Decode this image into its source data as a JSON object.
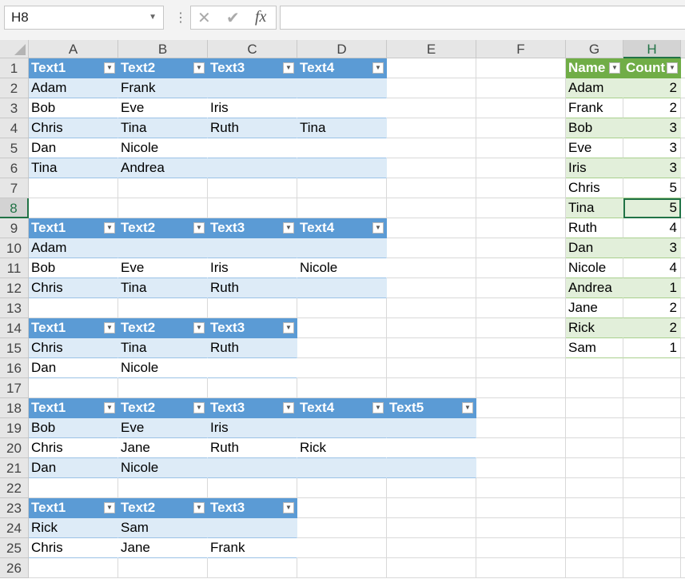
{
  "name_box": "H8",
  "formula_bar": {
    "cancel_icon": "x-icon",
    "enter_icon": "check-icon",
    "fx_label": "fx",
    "value": ""
  },
  "columns": [
    "A",
    "B",
    "C",
    "D",
    "E",
    "F",
    "G",
    "H"
  ],
  "row_count": 26,
  "selected_cell": {
    "column": "H",
    "row": 8
  },
  "colors": {
    "blue_header": "#5B9BD5",
    "blue_band": "#DDEBF7",
    "green_header": "#70AD47",
    "green_band": "#E2EFDA",
    "selection": "#217346"
  },
  "tables": [
    {
      "start_row": 1,
      "start_col": 0,
      "headers": [
        "Text1",
        "Text2",
        "Text3",
        "Text4"
      ],
      "rows": [
        [
          "Adam",
          "Frank",
          "",
          ""
        ],
        [
          "Bob",
          "Eve",
          "Iris",
          ""
        ],
        [
          "Chris",
          "Tina",
          "Ruth",
          "Tina"
        ],
        [
          "Dan",
          "Nicole",
          "",
          ""
        ],
        [
          "Tina",
          "Andrea",
          "",
          ""
        ]
      ]
    },
    {
      "start_row": 9,
      "start_col": 0,
      "headers": [
        "Text1",
        "Text2",
        "Text3",
        "Text4"
      ],
      "rows": [
        [
          "Adam",
          "",
          "",
          ""
        ],
        [
          "Bob",
          "Eve",
          "Iris",
          "Nicole"
        ],
        [
          "Chris",
          "Tina",
          "Ruth",
          ""
        ]
      ]
    },
    {
      "start_row": 14,
      "start_col": 0,
      "headers": [
        "Text1",
        "Text2",
        "Text3"
      ],
      "rows": [
        [
          "Chris",
          "Tina",
          "Ruth"
        ],
        [
          "Dan",
          "Nicole",
          ""
        ]
      ]
    },
    {
      "start_row": 18,
      "start_col": 0,
      "headers": [
        "Text1",
        "Text2",
        "Text3",
        "Text4",
        "Text5"
      ],
      "rows": [
        [
          "Bob",
          "Eve",
          "Iris",
          "",
          ""
        ],
        [
          "Chris",
          "Jane",
          "Ruth",
          "Rick",
          ""
        ],
        [
          "Dan",
          "Nicole",
          "",
          "",
          ""
        ]
      ]
    },
    {
      "start_row": 23,
      "start_col": 0,
      "headers": [
        "Text1",
        "Text2",
        "Text3"
      ],
      "rows": [
        [
          "Rick",
          "Sam",
          ""
        ],
        [
          "Chris",
          "Jane",
          "Frank"
        ]
      ]
    }
  ],
  "count_table": {
    "start_row": 1,
    "start_col": 6,
    "headers": [
      "Name",
      "Count"
    ],
    "rows": [
      [
        "Adam",
        2
      ],
      [
        "Frank",
        2
      ],
      [
        "Bob",
        3
      ],
      [
        "Eve",
        3
      ],
      [
        "Iris",
        3
      ],
      [
        "Chris",
        5
      ],
      [
        "Tina",
        5
      ],
      [
        "Ruth",
        4
      ],
      [
        "Dan",
        3
      ],
      [
        "Nicole",
        4
      ],
      [
        "Andrea",
        1
      ],
      [
        "Jane",
        2
      ],
      [
        "Rick",
        2
      ],
      [
        "Sam",
        1
      ]
    ]
  }
}
